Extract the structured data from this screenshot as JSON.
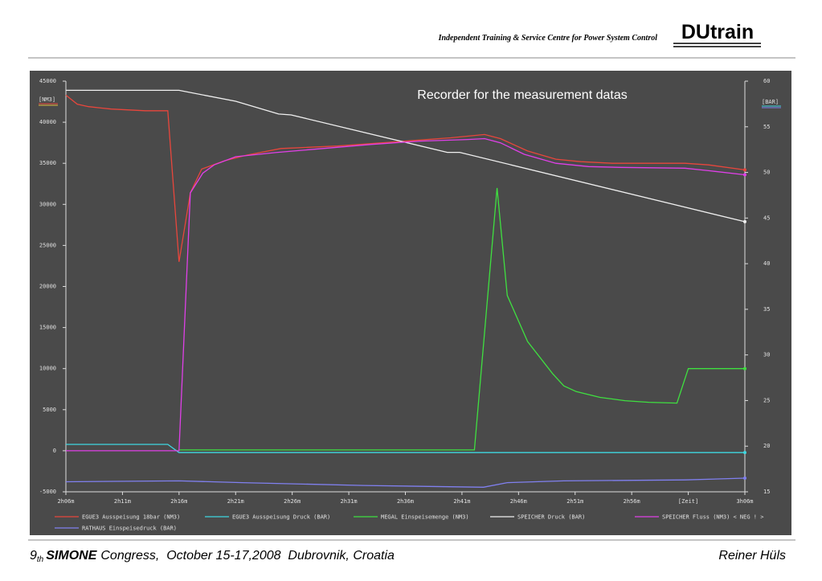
{
  "header": {
    "tagline": "Independent Training & Service Centre for Power System Control",
    "logo": "DUtrain"
  },
  "footer": {
    "number": "9",
    "ordinal": "th",
    "event": "SIMONE",
    "details": "Congress,  October 15-17,2008  Dubrovnik, Croatia",
    "author": "Reiner Hüls"
  },
  "chart_data": {
    "type": "line",
    "title": "Recorder for the measurement datas",
    "y_label": "[NM3]",
    "y2_label": "[BAR]",
    "xlim": [
      126,
      186
    ],
    "xticks": [
      {
        "value": 126,
        "label": "2h06m"
      },
      {
        "value": 131,
        "label": "2h11m"
      },
      {
        "value": 136,
        "label": "2h16m"
      },
      {
        "value": 141,
        "label": "2h21m"
      },
      {
        "value": 146,
        "label": "2h26m"
      },
      {
        "value": 151,
        "label": "2h31m"
      },
      {
        "value": 156,
        "label": "2h36m"
      },
      {
        "value": 161,
        "label": "2h41m"
      },
      {
        "value": 166,
        "label": "2h46m"
      },
      {
        "value": 171,
        "label": "2h51m"
      },
      {
        "value": 176,
        "label": "2h56m"
      },
      {
        "value": 181,
        "label": "[Zeit]"
      },
      {
        "value": 186,
        "label": "3h06m"
      }
    ],
    "ylim": [
      -5000,
      45000
    ],
    "yticks": [
      -5000,
      0,
      5000,
      10000,
      15000,
      20000,
      25000,
      30000,
      35000,
      40000,
      45000
    ],
    "y2lim": [
      15,
      60
    ],
    "y2ticks": [
      15,
      20,
      25,
      30,
      35,
      40,
      45,
      50,
      55,
      60
    ],
    "grid": false,
    "series": [
      {
        "name": "EGUE3 Ausspeisung 18bar (NM3)",
        "color": "#e8463c",
        "x": [
          126,
          127,
          128,
          130,
          133,
          135,
          136,
          137,
          138,
          140,
          142,
          145,
          150,
          155,
          160,
          163,
          164.4,
          166.8,
          169.3,
          171.5,
          174.3,
          180.7,
          182.8,
          186
        ],
        "values": [
          43300,
          42200,
          41900,
          41600,
          41400,
          41400,
          23000,
          31400,
          34300,
          35300,
          36000,
          36800,
          37100,
          37600,
          38100,
          38500,
          38000,
          36500,
          35500,
          35200,
          35000,
          35000,
          34800,
          34200
        ]
      },
      {
        "name": "EGUE3 Ausspeisung Druck (BAR)",
        "color": "#3fd7e0",
        "axis": "y2",
        "x": [
          126,
          135,
          136,
          186
        ],
        "values": [
          20.2,
          20.2,
          19.3,
          19.3
        ]
      },
      {
        "name": "MEGAL Einspeisemenge (NM3)",
        "color": "#3fe040",
        "x": [
          136,
          162.1,
          164.1,
          165,
          166.8,
          169,
          170,
          171.1,
          173.2,
          175.4,
          177.5,
          180,
          181,
          186
        ],
        "values": [
          100,
          100,
          32000,
          18900,
          13300,
          9400,
          7900,
          7200,
          6500,
          6100,
          5900,
          5800,
          10000,
          10000
        ]
      },
      {
        "name": "SPEICHER Druck (BAR)",
        "color": "#f0f0f0",
        "axis": "y2",
        "x": [
          126,
          136,
          141,
          144.8,
          145.9,
          159.7,
          160.8,
          186
        ],
        "values": [
          59,
          59,
          57.8,
          56.4,
          56.3,
          52.2,
          52.2,
          44.6
        ]
      },
      {
        "name": "SPEICHER Fluss (NM3) < NEG ! >",
        "color": "#e040e8",
        "x": [
          126,
          136,
          137,
          138.1,
          139.1,
          141,
          144.5,
          148.7,
          153,
          157.3,
          161.5,
          163,
          164.4,
          166.5,
          169.3,
          172.2,
          175,
          180.7,
          182.8,
          186
        ],
        "values": [
          0,
          0,
          31400,
          33800,
          34800,
          35800,
          36300,
          36800,
          37300,
          37700,
          37900,
          38000,
          37500,
          36100,
          35000,
          34600,
          34500,
          34400,
          34100,
          33600
        ]
      },
      {
        "name": "RATHAUS Einspeisedruck (BAR)",
        "color": "#8080f0",
        "axis": "y2",
        "x": [
          126,
          136,
          141.6,
          152.3,
          162.9,
          165,
          170,
          180.7,
          186
        ],
        "values": [
          16.1,
          16.2,
          16.0,
          15.7,
          15.5,
          16.0,
          16.2,
          16.3,
          16.5
        ]
      }
    ]
  }
}
